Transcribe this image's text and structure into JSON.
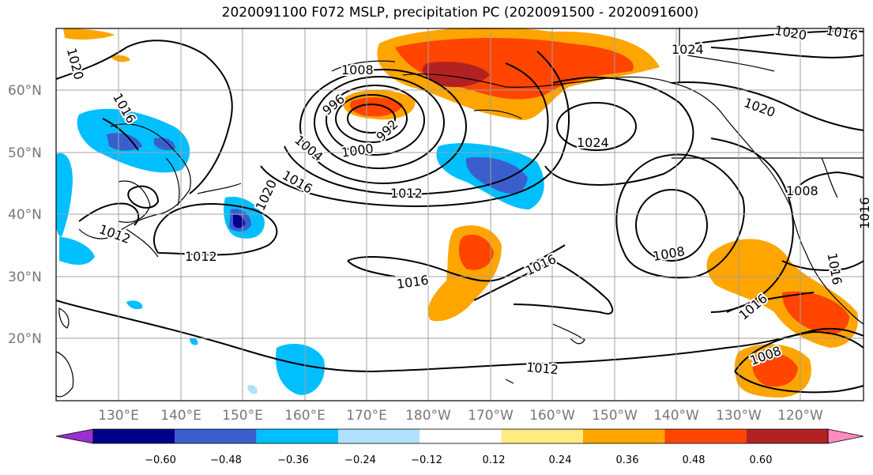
{
  "title": "2020091100 F072 MSLP, precipitation PC (2020091500 - 2020091600)",
  "map": {
    "lon_labels": [
      "130°E",
      "140°E",
      "150°E",
      "160°E",
      "170°E",
      "180°W",
      "170°W",
      "160°W",
      "150°W",
      "140°W",
      "130°W",
      "120°W"
    ],
    "lat_labels": [
      "60°N",
      "50°N",
      "40°N",
      "30°N",
      "20°N"
    ],
    "isobar_labels": [
      "1020",
      "1008",
      "996",
      "992",
      "1000",
      "1004",
      "1016",
      "1012",
      "1020",
      "1012",
      "1012",
      "1016",
      "1016",
      "1024",
      "1024",
      "1020",
      "1020",
      "1016",
      "1008",
      "1008",
      "1016",
      "1008",
      "1016",
      "1012",
      "1016",
      "1016"
    ],
    "isobar_label_pos": "on-contours"
  },
  "colorbar": {
    "ticks": [
      "−0.60",
      "−0.48",
      "−0.36",
      "−0.24",
      "−0.12",
      "0.12",
      "0.24",
      "0.36",
      "0.48",
      "0.60"
    ],
    "colors": [
      "#9b30d0",
      "#00008b",
      "#3a5fcd",
      "#00bfff",
      "#b0e2ff",
      "#ffffff",
      "#ffeb80",
      "#ffa500",
      "#ff4500",
      "#b22222",
      "#ff8ac0"
    ]
  }
}
